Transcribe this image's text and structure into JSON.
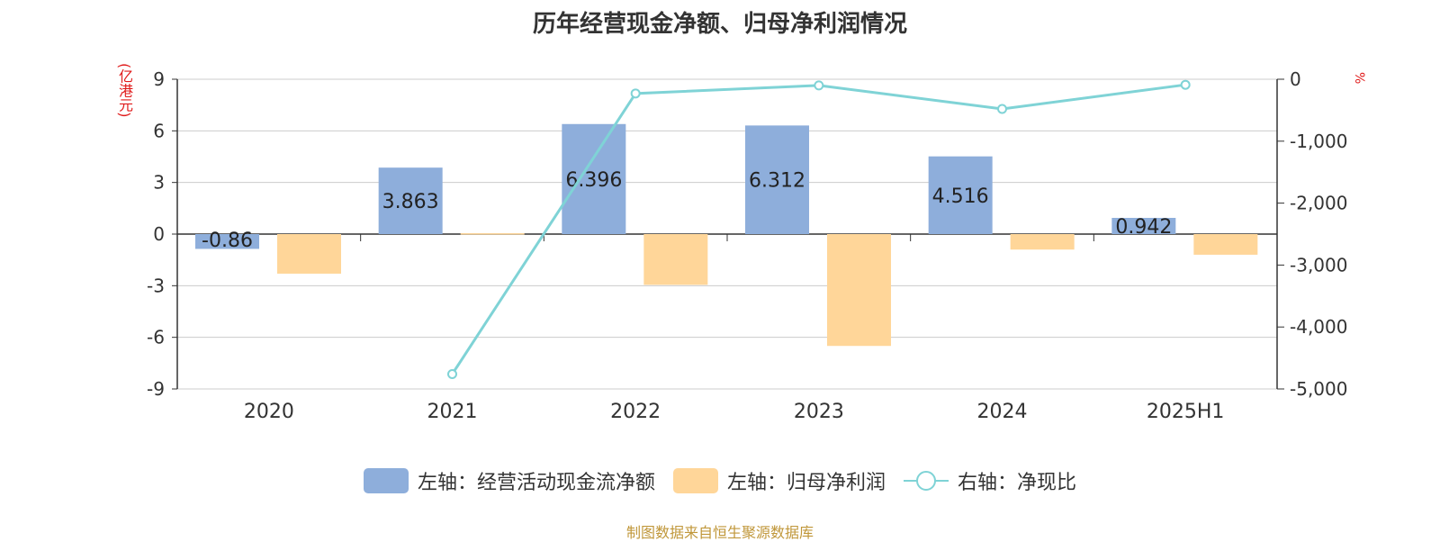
{
  "chart_data": {
    "type": "bar",
    "title": "历年经营现金净额、归母净利润情况",
    "categories": [
      "2020",
      "2021",
      "2022",
      "2023",
      "2024",
      "2025H1"
    ],
    "left_axis": {
      "unit": "(亿港元)",
      "range": [
        -9,
        9
      ],
      "ticks": [
        9,
        6,
        3,
        0,
        -3,
        -6,
        -9
      ]
    },
    "right_axis": {
      "unit": "%",
      "range": [
        -5000,
        0
      ],
      "ticks": [
        "0",
        "-1,000",
        "-2,000",
        "-3,000",
        "-4,000",
        "-5,000"
      ],
      "tick_values": [
        0,
        -1000,
        -2000,
        -3000,
        -4000,
        -5000
      ]
    },
    "series": [
      {
        "name": "左轴：经营活动现金流净额",
        "type": "bar",
        "axis": "left",
        "color": "#8eaedb",
        "values": [
          -0.86,
          3.863,
          6.396,
          6.312,
          4.516,
          0.942
        ],
        "labels": [
          "-0.86",
          "3.863",
          "6.396",
          "6.312",
          "4.516",
          "0.942"
        ]
      },
      {
        "name": "左轴：归母净利润",
        "type": "bar",
        "axis": "left",
        "color": "#ffd699",
        "values": [
          -2.3,
          0.05,
          -2.95,
          -6.5,
          -0.9,
          -1.2
        ]
      },
      {
        "name": "右轴：净现比",
        "type": "line",
        "axis": "right",
        "color": "#7fd3d6",
        "values": [
          null,
          -4760,
          -230,
          -100,
          -480,
          -90
        ]
      }
    ],
    "grid": true,
    "legend_position": "bottom"
  },
  "source_note": "制图数据来自恒生聚源数据库"
}
